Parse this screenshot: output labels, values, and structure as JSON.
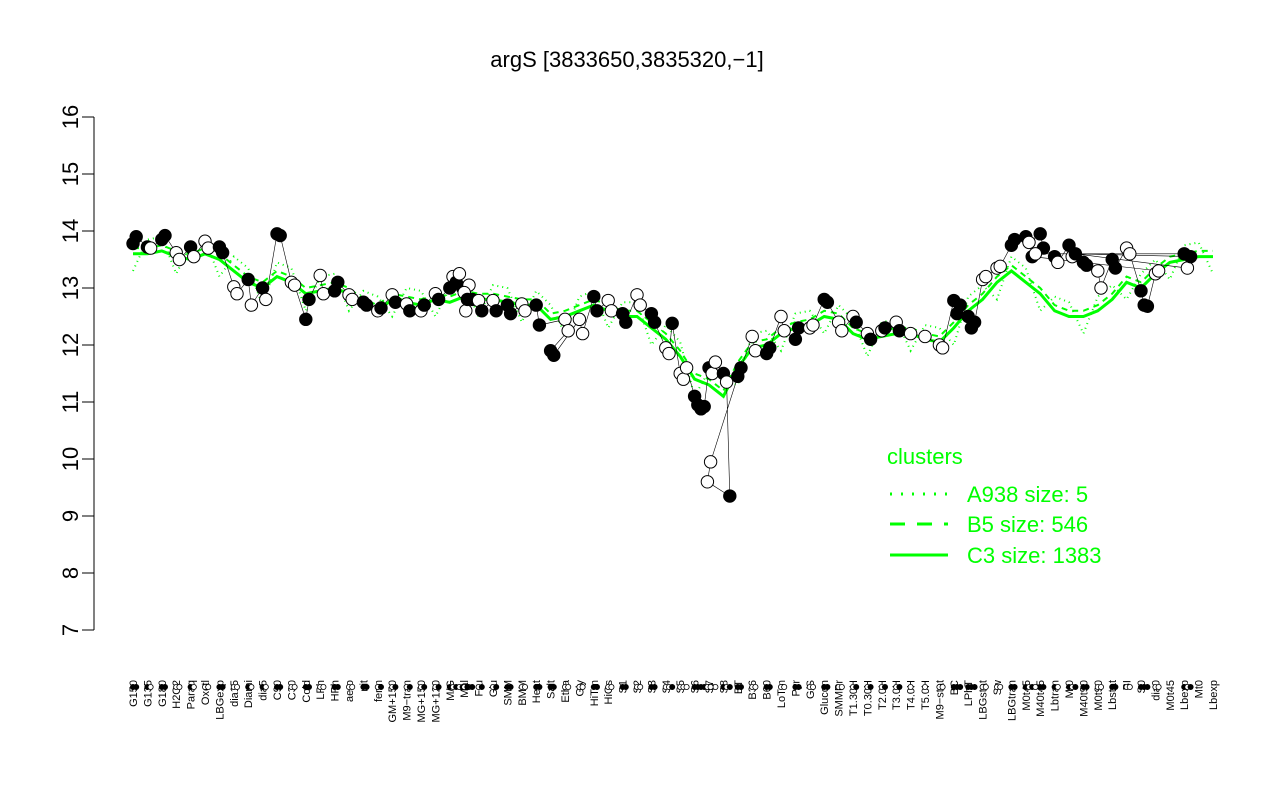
{
  "chart_data": {
    "type": "scatter",
    "title": "argS [3833650,3835320,−1]",
    "xlabel": "",
    "ylabel": "",
    "ylim": [
      7,
      16
    ],
    "y_ticks": [
      "7",
      "8",
      "9",
      "10",
      "11",
      "12",
      "13",
      "14",
      "15",
      "16"
    ],
    "x_tick_labels": [
      "G150",
      "G135",
      "G180",
      "H2O2",
      "Paraq",
      "Oxctl",
      "LBGexp",
      "dia15",
      "Diami",
      "dia5",
      "C90",
      "C30",
      "Cold",
      "LPh",
      "HPh",
      "aero",
      "nit",
      "ferm",
      "GM+150",
      "M9−tran",
      "MG+150",
      "MG+120",
      "M/G",
      "Mal",
      "Fru",
      "Glu",
      "SMM",
      "BMM",
      "Heat",
      "Salt",
      "Etha",
      "Gly",
      "HiTm",
      "HiOs",
      "S1",
      "S2",
      "S3",
      "S4",
      "S5",
      "S6",
      "S7",
      "S8",
      "BT",
      "B36",
      "B60",
      "LoTm",
      "Pyr",
      "G/S",
      "Glucon",
      "SMMPr",
      "T1.30H",
      "T0.30H",
      "T2.0H",
      "T3.0H",
      "T4.0H",
      "T5.0H",
      "M9−stat",
      "BC",
      "LPhT",
      "LBGstat",
      "Sw",
      "LBGtran",
      "M0t45",
      "M40t45",
      "Lbtran",
      "Mt0",
      "M40t90",
      "M0t90",
      "Lbstat",
      "BI",
      "S0",
      "dia0",
      "M0t45",
      "Lbexp",
      "Mt0",
      "Lbexp"
    ],
    "series": [
      {
        "name": "A938 size: 5",
        "style": "dotted"
      },
      {
        "name": "B5 size: 546",
        "style": "dashed"
      },
      {
        "name": "C3 size: 1383",
        "style": "solid",
        "values": [
          13.6,
          13.6,
          13.65,
          13.55,
          13.5,
          13.6,
          13.5,
          13.3,
          13.1,
          13.0,
          13.2,
          13.1,
          12.9,
          12.95,
          13.0,
          12.9,
          12.7,
          12.6,
          12.8,
          12.75,
          12.7,
          12.8,
          12.75,
          12.85,
          12.8,
          12.8,
          12.75,
          12.7,
          12.7,
          12.45,
          12.5,
          12.6,
          12.7,
          12.6,
          12.5,
          12.5,
          12.3,
          12.1,
          11.8,
          11.4,
          11.3,
          11.1,
          11.6,
          11.95,
          12.0,
          12.2,
          12.3,
          12.35,
          12.5,
          12.45,
          12.2,
          12.1,
          12.15,
          12.2,
          12.2,
          12.1,
          12.05,
          12.3,
          12.6,
          12.8,
          13.1,
          13.3,
          13.1,
          12.9,
          12.6,
          12.5,
          12.5,
          12.6,
          12.8,
          13.1,
          13.0,
          13.25,
          13.45,
          13.5,
          13.55,
          13.55
        ]
      }
    ],
    "points": [
      {
        "label": "G150",
        "y": 13.78,
        "filled": true
      },
      {
        "label": "G150",
        "y": 13.9,
        "filled": true
      },
      {
        "label": "G135",
        "y": 13.72,
        "filled": true
      },
      {
        "label": "G135",
        "y": 13.7,
        "filled": false
      },
      {
        "label": "G180",
        "y": 13.85,
        "filled": true
      },
      {
        "label": "G180",
        "y": 13.92,
        "filled": true
      },
      {
        "label": "H2O2",
        "y": 13.62,
        "filled": false
      },
      {
        "label": "H2O2",
        "y": 13.5,
        "filled": false
      },
      {
        "label": "Paraq",
        "y": 13.72,
        "filled": true
      },
      {
        "label": "Paraq",
        "y": 13.55,
        "filled": false
      },
      {
        "label": "Oxctl",
        "y": 13.82,
        "filled": false
      },
      {
        "label": "Oxctl",
        "y": 13.7,
        "filled": false
      },
      {
        "label": "LBGexp",
        "y": 13.72,
        "filled": true
      },
      {
        "label": "LBGexp",
        "y": 13.62,
        "filled": true
      },
      {
        "label": "dia15",
        "y": 13.02,
        "filled": false
      },
      {
        "label": "dia15",
        "y": 12.9,
        "filled": false
      },
      {
        "label": "Diami",
        "y": 13.15,
        "filled": true
      },
      {
        "label": "Diami",
        "y": 12.7,
        "filled": false
      },
      {
        "label": "dia5",
        "y": 13.0,
        "filled": true
      },
      {
        "label": "dia5",
        "y": 12.8,
        "filled": false
      },
      {
        "label": "C90",
        "y": 13.95,
        "filled": true
      },
      {
        "label": "C90",
        "y": 13.92,
        "filled": true
      },
      {
        "label": "C30",
        "y": 13.1,
        "filled": false
      },
      {
        "label": "C30",
        "y": 13.05,
        "filled": false
      },
      {
        "label": "Cold",
        "y": 12.45,
        "filled": true
      },
      {
        "label": "Cold",
        "y": 12.8,
        "filled": true
      },
      {
        "label": "LPh",
        "y": 13.22,
        "filled": false
      },
      {
        "label": "LPh",
        "y": 12.9,
        "filled": false
      },
      {
        "label": "HPh",
        "y": 12.95,
        "filled": true
      },
      {
        "label": "HPh",
        "y": 13.1,
        "filled": true
      },
      {
        "label": "aero",
        "y": 12.88,
        "filled": false
      },
      {
        "label": "aero",
        "y": 12.8,
        "filled": false
      },
      {
        "label": "nit",
        "y": 12.75,
        "filled": true
      },
      {
        "label": "nit",
        "y": 12.7,
        "filled": true
      },
      {
        "label": "ferm",
        "y": 12.6,
        "filled": false
      },
      {
        "label": "ferm",
        "y": 12.65,
        "filled": true
      },
      {
        "label": "GM+150",
        "y": 12.88,
        "filled": false
      },
      {
        "label": "GM+150",
        "y": 12.75,
        "filled": true
      },
      {
        "label": "M9−tran",
        "y": 12.72,
        "filled": false
      },
      {
        "label": "M9−tran",
        "y": 12.6,
        "filled": true
      },
      {
        "label": "MG+150",
        "y": 12.6,
        "filled": false
      },
      {
        "label": "MG+150",
        "y": 12.7,
        "filled": true
      },
      {
        "label": "MG+120",
        "y": 12.9,
        "filled": false
      },
      {
        "label": "MG+120",
        "y": 12.8,
        "filled": true
      },
      {
        "label": "M/G",
        "y": 13.0,
        "filled": true
      },
      {
        "label": "M/G",
        "y": 13.2,
        "filled": false
      },
      {
        "label": "M/G",
        "y": 13.1,
        "filled": true
      },
      {
        "label": "M/G",
        "y": 13.25,
        "filled": false
      },
      {
        "label": "M/G",
        "y": 13.0,
        "filled": true
      },
      {
        "label": "M/G",
        "y": 12.6,
        "filled": false
      },
      {
        "label": "M/G",
        "y": 13.05,
        "filled": false
      },
      {
        "label": "M/G",
        "y": 12.8,
        "filled": true
      },
      {
        "label": "Mal",
        "y": 12.92,
        "filled": false
      },
      {
        "label": "Mal",
        "y": 12.8,
        "filled": true
      },
      {
        "label": "Fru",
        "y": 12.78,
        "filled": false
      },
      {
        "label": "Fru",
        "y": 12.6,
        "filled": true
      },
      {
        "label": "Glu",
        "y": 12.78,
        "filled": false
      },
      {
        "label": "Glu",
        "y": 12.6,
        "filled": true
      },
      {
        "label": "SMM",
        "y": 12.7,
        "filled": true
      },
      {
        "label": "SMM",
        "y": 12.55,
        "filled": true
      },
      {
        "label": "BMM",
        "y": 12.72,
        "filled": false
      },
      {
        "label": "BMM",
        "y": 12.6,
        "filled": false
      },
      {
        "label": "Heat",
        "y": 12.7,
        "filled": true
      },
      {
        "label": "Heat",
        "y": 12.35,
        "filled": true
      },
      {
        "label": "Etha",
        "y": 12.45,
        "filled": false
      },
      {
        "label": "Etha",
        "y": 12.25,
        "filled": false
      },
      {
        "label": "Salt",
        "y": 11.9,
        "filled": true
      },
      {
        "label": "Salt",
        "y": 11.82,
        "filled": true
      },
      {
        "label": "Gly",
        "y": 12.45,
        "filled": false
      },
      {
        "label": "Gly",
        "y": 12.2,
        "filled": false
      },
      {
        "label": "HiTm",
        "y": 12.85,
        "filled": true
      },
      {
        "label": "HiTm",
        "y": 12.6,
        "filled": true
      },
      {
        "label": "HiOs",
        "y": 12.78,
        "filled": false
      },
      {
        "label": "HiOs",
        "y": 12.6,
        "filled": false
      },
      {
        "label": "S1",
        "y": 12.55,
        "filled": true
      },
      {
        "label": "S1",
        "y": 12.4,
        "filled": true
      },
      {
        "label": "S2",
        "y": 12.88,
        "filled": false
      },
      {
        "label": "S2",
        "y": 12.7,
        "filled": false
      },
      {
        "label": "S3",
        "y": 12.55,
        "filled": true
      },
      {
        "label": "S3",
        "y": 12.4,
        "filled": true
      },
      {
        "label": "S4",
        "y": 11.95,
        "filled": false
      },
      {
        "label": "S4",
        "y": 11.85,
        "filled": false
      },
      {
        "label": "S4",
        "y": 12.38,
        "filled": true
      },
      {
        "label": "S5",
        "y": 11.5,
        "filled": false
      },
      {
        "label": "S5",
        "y": 11.4,
        "filled": false
      },
      {
        "label": "S5",
        "y": 11.6,
        "filled": false
      },
      {
        "label": "S6",
        "y": 11.1,
        "filled": true
      },
      {
        "label": "S6",
        "y": 10.95,
        "filled": true
      },
      {
        "label": "S6",
        "y": 10.88,
        "filled": true
      },
      {
        "label": "S6",
        "y": 10.92,
        "filled": true
      },
      {
        "label": "S7",
        "y": 11.6,
        "filled": true
      },
      {
        "label": "S7",
        "y": 11.5,
        "filled": false
      },
      {
        "label": "S7",
        "y": 11.7,
        "filled": false
      },
      {
        "label": "S8",
        "y": 11.5,
        "filled": true
      },
      {
        "label": "S8",
        "y": 11.35,
        "filled": false
      },
      {
        "label": "S8",
        "y": 9.35,
        "filled": true
      },
      {
        "label": "S6",
        "y": 9.6,
        "filled": false
      },
      {
        "label": "S6",
        "y": 9.95,
        "filled": false
      },
      {
        "label": "BT",
        "y": 11.45,
        "filled": true
      },
      {
        "label": "BT",
        "y": 11.6,
        "filled": true
      },
      {
        "label": "B36",
        "y": 12.15,
        "filled": false
      },
      {
        "label": "B36",
        "y": 11.9,
        "filled": false
      },
      {
        "label": "B60",
        "y": 11.85,
        "filled": true
      },
      {
        "label": "B60",
        "y": 11.95,
        "filled": true
      },
      {
        "label": "LoTm",
        "y": 12.5,
        "filled": false
      },
      {
        "label": "LoTm",
        "y": 12.25,
        "filled": false
      },
      {
        "label": "Pyr",
        "y": 12.1,
        "filled": true
      },
      {
        "label": "Pyr",
        "y": 12.3,
        "filled": true
      },
      {
        "label": "G/S",
        "y": 12.3,
        "filled": false
      },
      {
        "label": "G/S",
        "y": 12.35,
        "filled": false
      },
      {
        "label": "Glucon",
        "y": 12.8,
        "filled": true
      },
      {
        "label": "Glucon",
        "y": 12.75,
        "filled": true
      },
      {
        "label": "SMMPr",
        "y": 12.4,
        "filled": false
      },
      {
        "label": "SMMPr",
        "y": 12.25,
        "filled": false
      },
      {
        "label": "T1.30H",
        "y": 12.5,
        "filled": false
      },
      {
        "label": "T1.30H",
        "y": 12.4,
        "filled": true
      },
      {
        "label": "T0.30H",
        "y": 12.2,
        "filled": false
      },
      {
        "label": "T0.30H",
        "y": 12.1,
        "filled": true
      },
      {
        "label": "T2.0H",
        "y": 12.25,
        "filled": false
      },
      {
        "label": "T2.0H",
        "y": 12.3,
        "filled": true
      },
      {
        "label": "T3.0H",
        "y": 12.4,
        "filled": false
      },
      {
        "label": "T3.0H",
        "y": 12.25,
        "filled": true
      },
      {
        "label": "T4.0H",
        "y": 12.2,
        "filled": false
      },
      {
        "label": "T5.0H",
        "y": 12.15,
        "filled": false
      },
      {
        "label": "M9−stat",
        "y": 12.0,
        "filled": false
      },
      {
        "label": "M9−stat",
        "y": 11.95,
        "filled": false
      },
      {
        "label": "BC",
        "y": 12.78,
        "filled": true
      },
      {
        "label": "BC",
        "y": 12.55,
        "filled": true
      },
      {
        "label": "BC",
        "y": 12.7,
        "filled": true
      },
      {
        "label": "LPhT",
        "y": 12.5,
        "filled": true
      },
      {
        "label": "LPhT",
        "y": 12.3,
        "filled": true
      },
      {
        "label": "LPhT",
        "y": 12.4,
        "filled": true
      },
      {
        "label": "LBGstat",
        "y": 13.15,
        "filled": false
      },
      {
        "label": "LBGstat",
        "y": 13.2,
        "filled": false
      },
      {
        "label": "Sw",
        "y": 13.35,
        "filled": false
      },
      {
        "label": "Sw",
        "y": 13.38,
        "filled": false
      },
      {
        "label": "LBGtran",
        "y": 13.75,
        "filled": true
      },
      {
        "label": "LBGtran",
        "y": 13.85,
        "filled": true
      },
      {
        "label": "M0t45",
        "y": 13.9,
        "filled": true
      },
      {
        "label": "M0t45",
        "y": 13.8,
        "filled": false
      },
      {
        "label": "M40t45",
        "y": 13.95,
        "filled": true
      },
      {
        "label": "M40t45",
        "y": 13.7,
        "filled": true
      },
      {
        "label": "Lbtran",
        "y": 13.55,
        "filled": true
      },
      {
        "label": "Lbtran",
        "y": 13.45,
        "filled": false
      },
      {
        "label": "Mt0",
        "y": 13.75,
        "filled": true
      },
      {
        "label": "Mt0",
        "y": 13.55,
        "filled": false
      },
      {
        "label": "M40t90",
        "y": 13.45,
        "filled": true
      },
      {
        "label": "M40t90",
        "y": 13.4,
        "filled": true
      },
      {
        "label": "M0t90",
        "y": 13.3,
        "filled": false
      },
      {
        "label": "M0t90",
        "y": 13.0,
        "filled": false
      },
      {
        "label": "Lbstat",
        "y": 13.5,
        "filled": true
      },
      {
        "label": "Lbstat",
        "y": 13.35,
        "filled": true
      },
      {
        "label": "BI",
        "y": 13.7,
        "filled": false
      },
      {
        "label": "BI",
        "y": 13.6,
        "filled": false
      },
      {
        "label": "S0",
        "y": 12.95,
        "filled": true
      },
      {
        "label": "S0",
        "y": 12.7,
        "filled": true
      },
      {
        "label": "S0",
        "y": 12.68,
        "filled": true
      },
      {
        "label": "dia0",
        "y": 13.25,
        "filled": false
      },
      {
        "label": "dia0",
        "y": 13.3,
        "filled": false
      },
      {
        "label": "M0t45",
        "y": 13.55,
        "filled": true
      },
      {
        "label": "M0t45",
        "y": 13.6,
        "filled": false
      },
      {
        "label": "Lbexp",
        "y": 13.6,
        "filled": true
      },
      {
        "label": "Lbexp",
        "y": 13.35,
        "filled": false
      },
      {
        "label": "Mt0",
        "y": 13.6,
        "filled": true
      },
      {
        "label": "Lbexp",
        "y": 13.55,
        "filled": true
      }
    ],
    "legend": {
      "title": "clusters",
      "position": "bottom-right",
      "color": "#00ff00"
    },
    "grid": false
  }
}
